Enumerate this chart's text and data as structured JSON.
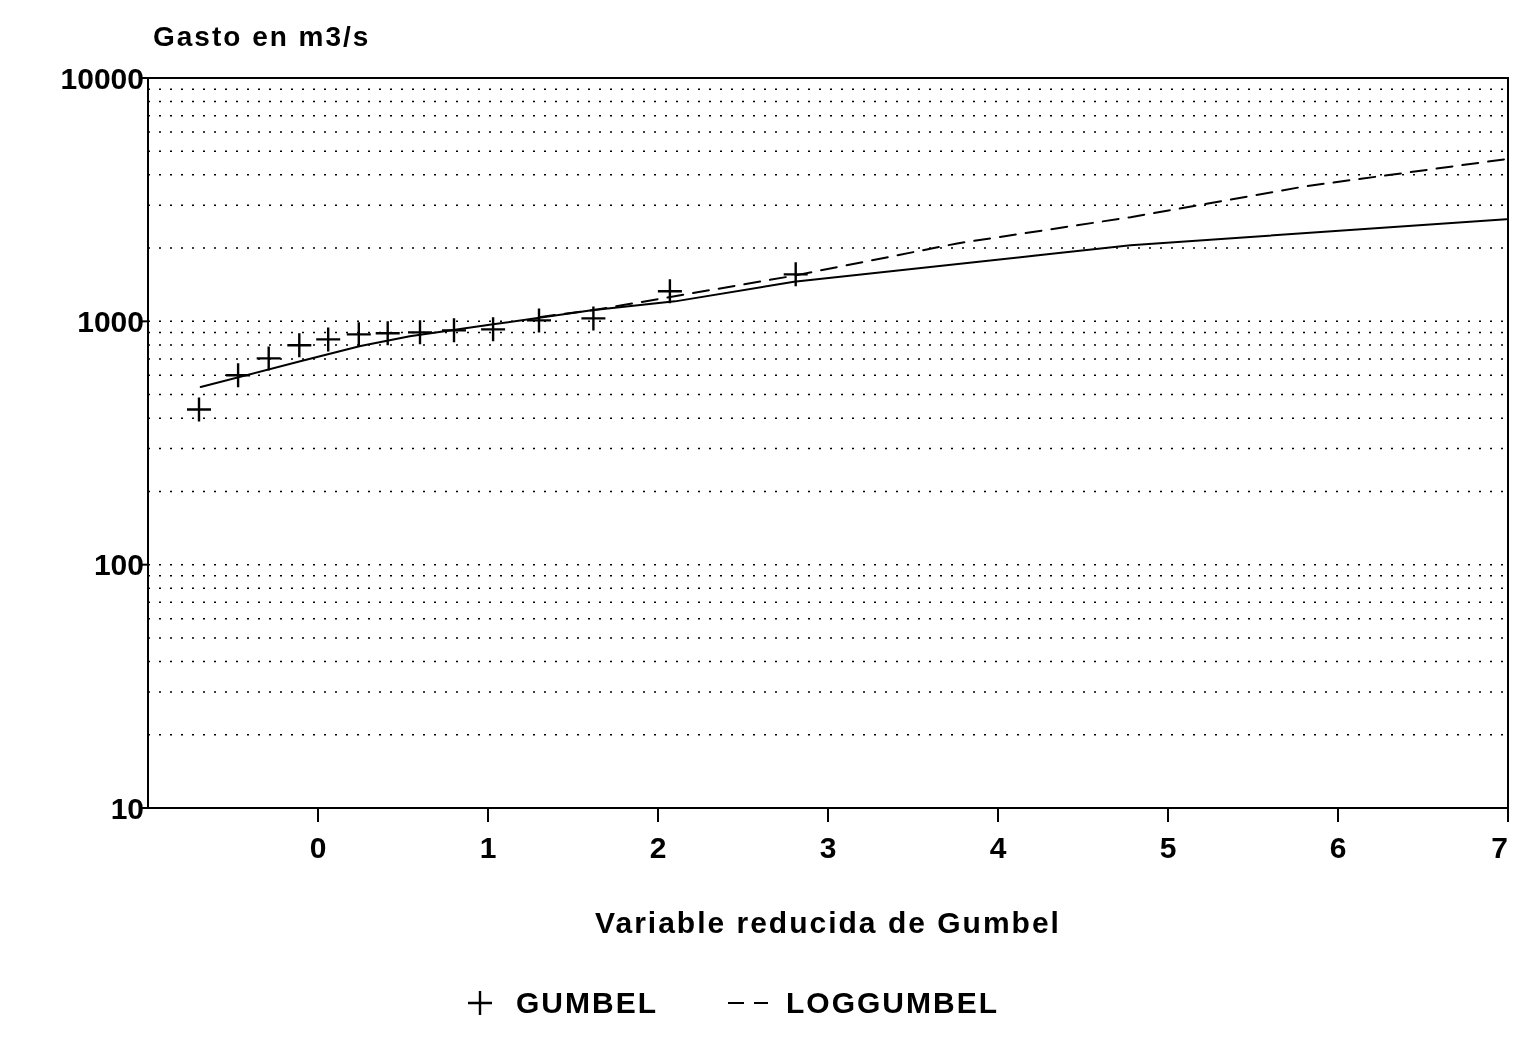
{
  "chart_data": {
    "type": "line",
    "ylabel": "Gasto en m3/s",
    "xlabel": "Variable reducida de Gumbel",
    "log": "y",
    "xlim": [
      -1,
      7
    ],
    "xticks": [
      0,
      1,
      2,
      3,
      4,
      5,
      6,
      7
    ],
    "ylim": [
      10,
      10000
    ],
    "yticks": [
      10,
      {
        "value": 20,
        "label": null
      },
      {
        "value": 30,
        "label": null
      },
      {
        "value": 40,
        "label": null
      },
      {
        "value": 50,
        "label": null
      },
      {
        "value": 60,
        "label": null
      },
      {
        "value": 70,
        "label": null
      },
      {
        "value": 80,
        "label": null
      },
      {
        "value": 90,
        "label": null
      },
      100,
      {
        "value": 200,
        "label": null
      },
      {
        "value": 300,
        "label": null
      },
      {
        "value": 400,
        "label": null
      },
      {
        "value": 500,
        "label": null
      },
      {
        "value": 600,
        "label": null
      },
      {
        "value": 700,
        "label": null
      },
      {
        "value": 800,
        "label": null
      },
      {
        "value": 900,
        "label": null
      },
      1000,
      {
        "value": 2000,
        "label": null
      },
      {
        "value": 3000,
        "label": null
      },
      {
        "value": 4000,
        "label": null
      },
      {
        "value": 5000,
        "label": null
      },
      {
        "value": 6000,
        "label": null
      },
      {
        "value": 7000,
        "label": null
      },
      {
        "value": 8000,
        "label": null
      },
      {
        "value": 9000,
        "label": null
      },
      10000
    ],
    "grid": "y",
    "legend": "bottom",
    "series": [
      {
        "name": "GUMBEL",
        "type": "scatter",
        "marker": "cross",
        "color": "#000000",
        "x": [
          -0.7,
          -0.47,
          -0.29,
          -0.11,
          0.06,
          0.24,
          0.41,
          0.6,
          0.8,
          1.03,
          1.3,
          1.62,
          2.07,
          2.81
        ],
        "values": [
          434,
          600,
          704,
          797,
          843,
          884,
          893,
          901,
          918,
          927,
          1009,
          1028,
          1330,
          1560
        ]
      },
      {
        "type": "line",
        "line_style": "solid",
        "color": "#000000",
        "x": [
          -0.69,
          -0.11,
          0.25,
          0.54,
          1.03,
          1.61,
          2.1,
          2.8,
          4.78,
          6.99
        ],
        "values": [
          537,
          684,
          792,
          868,
          972,
          1110,
          1208,
          1455,
          2055,
          2630
        ]
      },
      {
        "name": "LOGGUMBEL",
        "type": "line",
        "line_style": "dashed",
        "color": "#000000",
        "x": [
          1.3,
          1.65,
          2.8,
          3.76,
          4.78,
          5.81,
          6.99
        ],
        "values": [
          1040,
          1120,
          1540,
          2090,
          2680,
          3590,
          4640
        ]
      }
    ]
  }
}
